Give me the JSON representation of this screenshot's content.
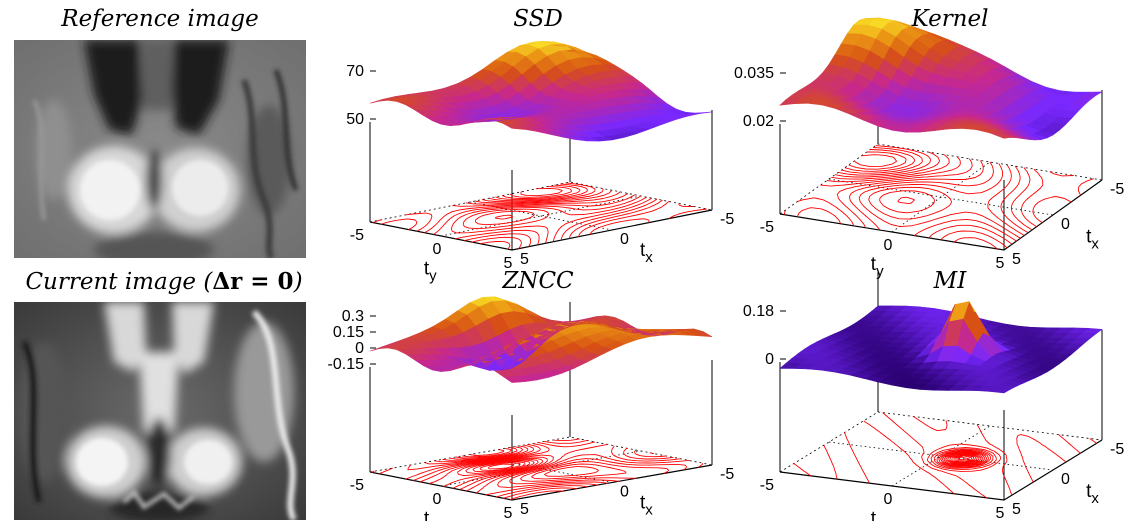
{
  "figure": {
    "reference_title": "Reference image",
    "current_title_prefix": "Current image (",
    "current_title_math": "Δr = 0",
    "current_title_suffix": ")"
  },
  "chart_data": [
    {
      "type": "surface",
      "title": "SSD",
      "xlabel": "t_y",
      "ylabel": "t_x",
      "x_range": [
        -5,
        5
      ],
      "y_range": [
        -5,
        5
      ],
      "x_ticks": [
        "-5",
        "0",
        "5"
      ],
      "y_ticks": [
        "-5",
        "0",
        "5"
      ],
      "z_ticks": [
        "70",
        "50"
      ],
      "z_range": [
        40,
        75
      ],
      "peak": "top-left",
      "contour_color": "#ff0000"
    },
    {
      "type": "surface",
      "title": "Kernel",
      "xlabel": "t_y",
      "ylabel": "t_x",
      "x_range": [
        -5,
        5
      ],
      "y_range": [
        -5,
        5
      ],
      "x_ticks": [
        "-5",
        "0",
        "5"
      ],
      "y_ticks": [
        "-5",
        "0",
        "5"
      ],
      "z_ticks": [
        "0.035",
        "0.02"
      ],
      "z_range": [
        0.015,
        0.04
      ],
      "peak": "top-left",
      "contour_color": "#ff0000"
    },
    {
      "type": "surface",
      "title": "ZNCC",
      "xlabel": "t_y",
      "ylabel": "t_x",
      "x_range": [
        -5,
        5
      ],
      "y_range": [
        -5,
        5
      ],
      "x_ticks": [
        "-5",
        "0",
        "5"
      ],
      "y_ticks": [
        "-5",
        "0",
        "5"
      ],
      "z_ticks": [
        "0.3",
        "0.15",
        "0",
        "-0.15"
      ],
      "z_range": [
        -0.25,
        0.35
      ],
      "peak": "left",
      "contour_color": "#ff0000"
    },
    {
      "type": "surface",
      "title": "MI",
      "xlabel": "t_y",
      "ylabel": "t_x",
      "x_range": [
        -5,
        5
      ],
      "y_range": [
        -5,
        5
      ],
      "x_ticks": [
        "-5",
        "0",
        "5"
      ],
      "y_ticks": [
        "-5",
        "0",
        "5"
      ],
      "z_ticks": [
        "0.18",
        "0"
      ],
      "z_range": [
        -0.05,
        0.2
      ],
      "peak": "center",
      "contour_color": "#ff0000"
    }
  ]
}
